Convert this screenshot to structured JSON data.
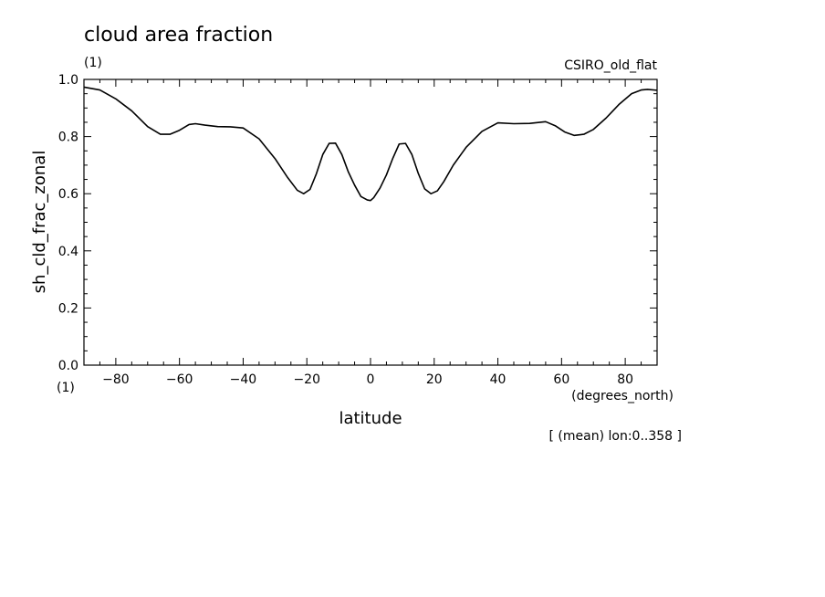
{
  "chart_data": {
    "type": "line",
    "title": "cloud area fraction",
    "units_top": "(1)",
    "dataset": "CSIRO_old_flat",
    "ylabel": "sh_cld_frac_zonal",
    "xlabel": "latitude",
    "x_units": "(degrees_north)",
    "y_units_bottom": "(1)",
    "note": "[ (mean) lon:0..358 ]",
    "xlim": [
      -90,
      90
    ],
    "ylim": [
      0.0,
      1.0
    ],
    "x_ticks": [
      -80,
      -60,
      -40,
      -20,
      0,
      20,
      40,
      60,
      80
    ],
    "y_ticks": [
      0.0,
      0.2,
      0.4,
      0.6,
      0.8,
      1.0
    ],
    "x_tick_labels": [
      "−80",
      "−60",
      "−40",
      "−20",
      "0",
      "20",
      "40",
      "60",
      "80"
    ],
    "y_tick_labels": [
      "0.0",
      "0.2",
      "0.4",
      "0.6",
      "0.8",
      "1.0"
    ],
    "grid": false,
    "series": [
      {
        "x": [
          -90,
          -85,
          -80,
          -75,
          -70,
          -66,
          -63,
          -60,
          -57,
          -55,
          -52,
          -48,
          -44,
          -40,
          -35,
          -30,
          -26,
          -23,
          -21,
          -19,
          -17,
          -15,
          -13,
          -11,
          -9,
          -7,
          -5,
          -3,
          -1,
          0,
          1,
          3,
          5,
          7,
          9,
          11,
          13,
          15,
          17,
          19,
          21,
          23,
          26,
          30,
          35,
          40,
          45,
          50,
          55,
          58,
          61,
          64,
          67,
          70,
          74,
          78,
          82,
          85,
          87,
          90
        ],
        "y": [
          0.973,
          0.963,
          0.932,
          0.89,
          0.835,
          0.808,
          0.808,
          0.822,
          0.842,
          0.845,
          0.84,
          0.835,
          0.834,
          0.83,
          0.792,
          0.723,
          0.656,
          0.612,
          0.6,
          0.615,
          0.67,
          0.737,
          0.776,
          0.777,
          0.737,
          0.677,
          0.63,
          0.59,
          0.578,
          0.576,
          0.586,
          0.62,
          0.666,
          0.724,
          0.774,
          0.776,
          0.737,
          0.671,
          0.617,
          0.6,
          0.61,
          0.642,
          0.7,
          0.762,
          0.818,
          0.848,
          0.845,
          0.846,
          0.852,
          0.838,
          0.816,
          0.804,
          0.808,
          0.825,
          0.865,
          0.912,
          0.95,
          0.963,
          0.965,
          0.962
        ]
      }
    ]
  }
}
